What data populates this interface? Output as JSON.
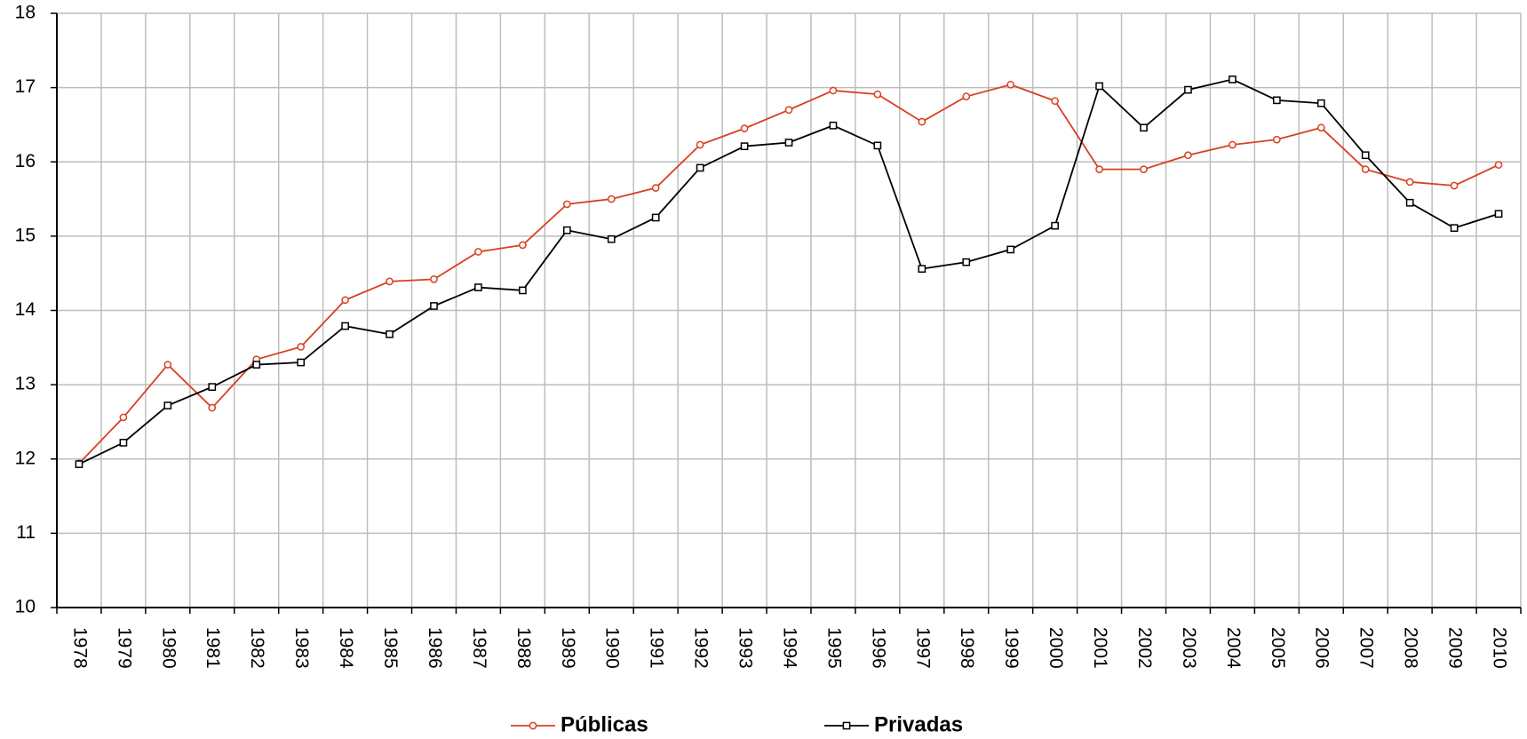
{
  "chart_data": {
    "type": "line",
    "categories": [
      "1978",
      "1979",
      "1980",
      "1981",
      "1982",
      "1983",
      "1984",
      "1985",
      "1986",
      "1987",
      "1988",
      "1989",
      "1990",
      "1991",
      "1992",
      "1993",
      "1994",
      "1995",
      "1996",
      "1997",
      "1998",
      "1999",
      "2000",
      "2001",
      "2002",
      "2003",
      "2004",
      "2005",
      "2006",
      "2007",
      "2008",
      "2009",
      "2010"
    ],
    "series": [
      {
        "name": "Públicas",
        "color": "#d8401f",
        "marker": "circle",
        "values": [
          11.94,
          12.56,
          13.27,
          12.69,
          13.34,
          13.51,
          14.14,
          14.39,
          14.42,
          14.79,
          14.88,
          15.43,
          15.5,
          15.65,
          16.23,
          16.45,
          16.7,
          16.96,
          16.91,
          16.54,
          16.88,
          17.04,
          16.82,
          15.9,
          15.9,
          16.09,
          16.23,
          16.3,
          16.46,
          15.9,
          15.73,
          15.68,
          15.96
        ]
      },
      {
        "name": "Privadas",
        "color": "#000000",
        "marker": "square",
        "values": [
          11.93,
          12.22,
          12.72,
          12.97,
          13.27,
          13.3,
          13.79,
          13.68,
          14.06,
          14.31,
          14.27,
          15.08,
          14.96,
          15.25,
          15.92,
          16.21,
          16.26,
          16.49,
          16.22,
          14.56,
          14.65,
          14.82,
          15.14,
          17.02,
          16.46,
          16.97,
          17.11,
          16.83,
          16.79,
          16.09,
          15.45,
          15.11,
          15.3
        ]
      }
    ],
    "ylim": [
      10,
      18
    ],
    "yticks": [
      10,
      11,
      12,
      13,
      14,
      15,
      16,
      17,
      18
    ],
    "grid": true,
    "legend": "bottom"
  }
}
